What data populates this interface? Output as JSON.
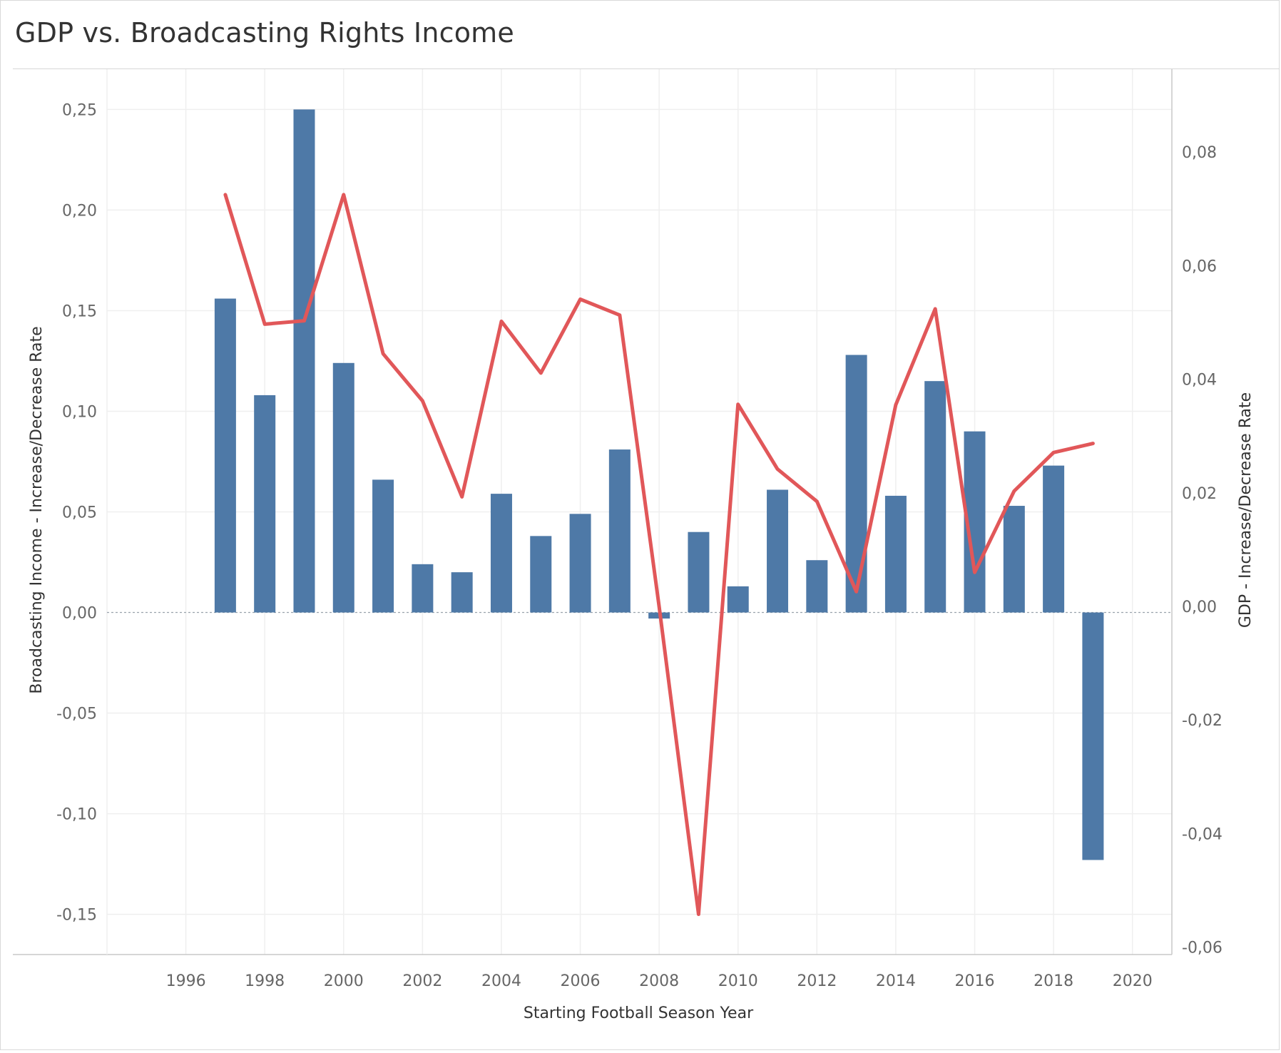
{
  "title": "GDP vs. Broadcasting Rights Income",
  "colors": {
    "bar": "#4e79a7",
    "line": "#e15759",
    "grid": "#efefef",
    "axis": "#c8c8c8",
    "zero": "#9aa3ad"
  },
  "chart_data": {
    "type": "bar",
    "title": "GDP vs. Broadcasting Rights Income",
    "xlabel": "Starting Football Season Year",
    "ylabel": "Broadcasting Income - Increase/Decrease Rate",
    "y2label": "GDP - Increase/Decrease Rate",
    "xlim": [
      1994,
      2021
    ],
    "ylim": [
      -0.17,
      0.27
    ],
    "y2lim": [
      -0.0613,
      0.0946
    ],
    "x_ticks": [
      "1996",
      "1998",
      "2000",
      "2002",
      "2004",
      "2006",
      "2008",
      "2010",
      "2012",
      "2014",
      "2016",
      "2018",
      "2020"
    ],
    "y_ticks": [
      "0,25",
      "0,20",
      "0,15",
      "0,10",
      "0,05",
      "0,00",
      "-0,05",
      "-0,10",
      "-0,15"
    ],
    "y2_ticks": [
      "0,08",
      "0,06",
      "0,04",
      "0,02",
      "0,00",
      "-0,02",
      "-0,04",
      "-0,06"
    ],
    "grid": true,
    "series": [
      {
        "type": "bar",
        "x": [
          1997,
          1998,
          1999,
          2000,
          2001,
          2002,
          2003,
          2004,
          2005,
          2006,
          2007,
          2008,
          2009,
          2010,
          2011,
          2012,
          2013,
          2014,
          2015,
          2016,
          2017,
          2018,
          2019
        ],
        "values": [
          0.156,
          0.108,
          0.25,
          0.124,
          0.066,
          0.024,
          0.02,
          0.059,
          0.038,
          0.049,
          0.081,
          -0.003,
          0.04,
          0.013,
          0.061,
          0.026,
          0.128,
          0.058,
          0.115,
          0.09,
          0.053,
          0.073,
          -0.123
        ]
      },
      {
        "type": "line",
        "axis": "right",
        "x": [
          1997,
          1998,
          1999,
          2000,
          2001,
          2002,
          2003,
          2004,
          2005,
          2006,
          2007,
          2008,
          2009,
          2010,
          2011,
          2012,
          2013,
          2014,
          2015,
          2016,
          2017,
          2018,
          2019
        ],
        "values": [
          0.0725,
          0.0497,
          0.0503,
          0.0725,
          0.0445,
          0.0362,
          0.0193,
          0.0502,
          0.0411,
          0.0541,
          0.0513,
          0.0,
          -0.0542,
          0.0356,
          0.0242,
          0.0185,
          0.0026,
          0.0355,
          0.0524,
          0.006,
          0.0203,
          0.0271,
          0.0287
        ]
      }
    ]
  }
}
